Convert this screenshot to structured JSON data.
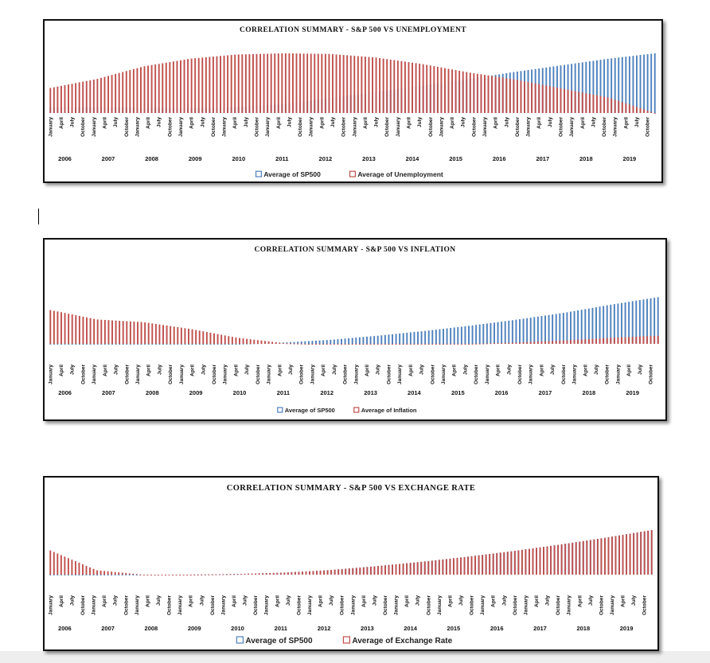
{
  "chart_data": [
    {
      "type": "bar",
      "title": "CORRELATION SUMMARY - S&P 500 VS UNEMPLOYMENT",
      "month_labels": [
        "January",
        "April",
        "July",
        "October"
      ],
      "years": [
        "2006",
        "2007",
        "2008",
        "2009",
        "2010",
        "2011",
        "2012",
        "2013",
        "2014",
        "2015",
        "2016",
        "2017",
        "2018",
        "2019"
      ],
      "series": [
        {
          "name": "Average of SP500",
          "color": "#4f81bd",
          "values": [
            0.1,
            0.1,
            0.09,
            0.08,
            0.1,
            0.15,
            0.25,
            0.35,
            0.46,
            0.57,
            0.69,
            0.8,
            0.91,
            1.0
          ]
        },
        {
          "name": "Average of Unemployment",
          "color": "#c0504d",
          "values": [
            0.42,
            0.57,
            0.78,
            0.91,
            0.98,
            1.0,
            0.99,
            0.93,
            0.82,
            0.68,
            0.56,
            0.41,
            0.26,
            0.0
          ]
        }
      ],
      "legend_position": "bottom",
      "grid": false
    },
    {
      "type": "bar",
      "title": "CORRELATION SUMMARY - S&P 500 VS INFLATION",
      "month_labels": [
        "January",
        "April",
        "July",
        "October"
      ],
      "years": [
        "2006",
        "2007",
        "2008",
        "2009",
        "2010",
        "2011",
        "2012",
        "2013",
        "2014",
        "2015",
        "2016",
        "2017",
        "2018",
        "2019"
      ],
      "series": [
        {
          "name": "Average of SP500",
          "color": "#4f81bd",
          "values": [
            0.0,
            0.0,
            -0.01,
            -0.01,
            0.0,
            0.02,
            0.06,
            0.12,
            0.19,
            0.27,
            0.36,
            0.46,
            0.58,
            0.69
          ]
        },
        {
          "name": "Average of Inflation",
          "color": "#c0504d",
          "values": [
            0.5,
            0.36,
            0.32,
            0.22,
            0.09,
            0.01,
            -0.01,
            -0.01,
            -0.01,
            0.0,
            0.02,
            0.05,
            0.09,
            0.12
          ]
        }
      ],
      "legend_position": "bottom",
      "grid": false
    },
    {
      "type": "bar",
      "title": "CORRELATION SUMMARY - S&P 500 VS EXCHANGE RATE",
      "month_labels": [
        "January",
        "April",
        "July",
        "October"
      ],
      "years": [
        "2006",
        "2007",
        "2008",
        "2009",
        "2010",
        "2011",
        "2012",
        "2013",
        "2014",
        "2015",
        "2016",
        "2017",
        "2018",
        "2019"
      ],
      "series": [
        {
          "name": "Average of SP500",
          "color": "#4f81bd",
          "values": [
            0.0,
            0.0,
            0.0,
            0.0,
            0.01,
            0.03,
            0.07,
            0.13,
            0.2,
            0.28,
            0.37,
            0.47,
            0.58,
            0.7
          ]
        },
        {
          "name": "Average of Exchange Rate",
          "color": "#c0504d",
          "values": [
            0.38,
            0.07,
            0.0,
            0.0,
            0.01,
            0.03,
            0.07,
            0.13,
            0.2,
            0.28,
            0.37,
            0.47,
            0.58,
            0.7
          ]
        }
      ],
      "legend_position": "bottom",
      "grid": false
    }
  ]
}
